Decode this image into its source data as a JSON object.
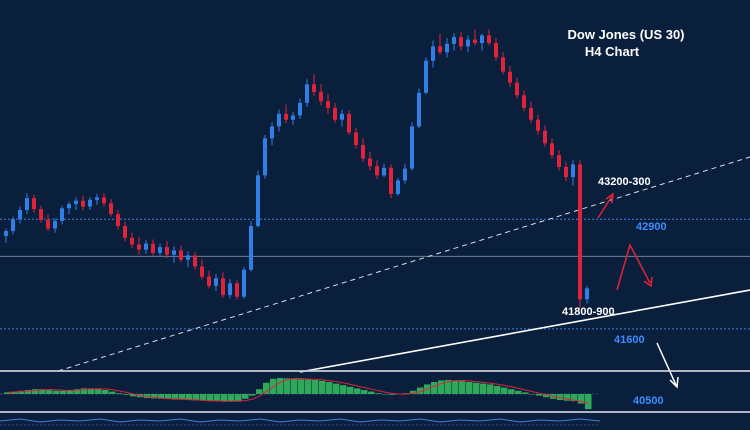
{
  "chart_data": {
    "type": "candlestick",
    "title": "Dow Jones (US 30)",
    "subtitle": "H4 Chart",
    "ylim": [
      40400,
      45500
    ],
    "colors": {
      "background": "#0a1f3c",
      "candle_up": "#2f7fe6",
      "candle_down": "#e0233a",
      "level_line": "#3d7fe0",
      "level_label": "#3d8cff",
      "price_label": "#ffffff",
      "trendline": "#ffffff",
      "arrow_red": "#e0233a",
      "arrow_white": "#ffffff",
      "histogram": "#2fa85a"
    },
    "candles": [
      [
        42700,
        42790,
        42620,
        42760
      ],
      [
        42760,
        42930,
        42720,
        42900
      ],
      [
        42900,
        43050,
        42850,
        43010
      ],
      [
        43010,
        43210,
        42960,
        43150
      ],
      [
        43150,
        43190,
        42980,
        43020
      ],
      [
        43020,
        43060,
        42860,
        42890
      ],
      [
        42890,
        42960,
        42760,
        42790
      ],
      [
        42790,
        42910,
        42740,
        42880
      ],
      [
        42880,
        43060,
        42840,
        43030
      ],
      [
        43030,
        43110,
        42960,
        43080
      ],
      [
        43080,
        43160,
        43010,
        43120
      ],
      [
        43120,
        43180,
        43000,
        43050
      ],
      [
        43050,
        43160,
        43010,
        43130
      ],
      [
        43130,
        43200,
        43070,
        43160
      ],
      [
        43160,
        43210,
        43050,
        43090
      ],
      [
        43090,
        43140,
        42930,
        42960
      ],
      [
        42960,
        43010,
        42780,
        42820
      ],
      [
        42820,
        42870,
        42640,
        42680
      ],
      [
        42680,
        42740,
        42560,
        42600
      ],
      [
        42600,
        42690,
        42480,
        42540
      ],
      [
        42540,
        42650,
        42490,
        42610
      ],
      [
        42610,
        42660,
        42470,
        42500
      ],
      [
        42500,
        42610,
        42460,
        42570
      ],
      [
        42570,
        42640,
        42440,
        42480
      ],
      [
        42480,
        42580,
        42380,
        42530
      ],
      [
        42530,
        42590,
        42390,
        42420
      ],
      [
        42420,
        42520,
        42330,
        42470
      ],
      [
        42470,
        42510,
        42300,
        42340
      ],
      [
        42340,
        42420,
        42190,
        42220
      ],
      [
        42220,
        42290,
        42080,
        42110
      ],
      [
        42110,
        42250,
        42050,
        42200
      ],
      [
        42200,
        42270,
        41970,
        42000
      ],
      [
        42000,
        42190,
        41960,
        42140
      ],
      [
        42140,
        42180,
        41950,
        41980
      ],
      [
        41980,
        42330,
        41960,
        42300
      ],
      [
        42300,
        42880,
        42280,
        42820
      ],
      [
        42820,
        43480,
        42800,
        43420
      ],
      [
        43420,
        43900,
        43380,
        43860
      ],
      [
        43860,
        44050,
        43780,
        44000
      ],
      [
        44000,
        44200,
        43940,
        44150
      ],
      [
        44150,
        44260,
        44040,
        44080
      ],
      [
        44080,
        44170,
        44020,
        44130
      ],
      [
        44130,
        44330,
        44090,
        44280
      ],
      [
        44280,
        44560,
        44230,
        44500
      ],
      [
        44500,
        44620,
        44360,
        44410
      ],
      [
        44410,
        44500,
        44250,
        44300
      ],
      [
        44300,
        44390,
        44150,
        44220
      ],
      [
        44220,
        44280,
        44040,
        44080
      ],
      [
        44080,
        44200,
        44000,
        44150
      ],
      [
        44150,
        44190,
        43900,
        43930
      ],
      [
        43930,
        43980,
        43740,
        43780
      ],
      [
        43780,
        43860,
        43580,
        43620
      ],
      [
        43620,
        43700,
        43480,
        43530
      ],
      [
        43530,
        43600,
        43380,
        43420
      ],
      [
        43420,
        43560,
        43400,
        43510
      ],
      [
        43510,
        43550,
        43150,
        43200
      ],
      [
        43200,
        43390,
        43180,
        43360
      ],
      [
        43360,
        43560,
        43320,
        43500
      ],
      [
        43500,
        44050,
        43480,
        44000
      ],
      [
        44000,
        44450,
        43980,
        44400
      ],
      [
        44400,
        44820,
        44380,
        44780
      ],
      [
        44780,
        45020,
        44700,
        44950
      ],
      [
        44950,
        45100,
        44850,
        44880
      ],
      [
        44880,
        45050,
        44820,
        44980
      ],
      [
        44980,
        45110,
        44900,
        45060
      ],
      [
        45060,
        45120,
        44900,
        44950
      ],
      [
        44950,
        45080,
        44880,
        45030
      ],
      [
        45030,
        45150,
        44960,
        44990
      ],
      [
        44990,
        45100,
        44900,
        45080
      ],
      [
        45080,
        45150,
        44960,
        44990
      ],
      [
        44990,
        45050,
        44780,
        44820
      ],
      [
        44820,
        44880,
        44620,
        44650
      ],
      [
        44650,
        44720,
        44470,
        44520
      ],
      [
        44520,
        44580,
        44330,
        44370
      ],
      [
        44370,
        44430,
        44180,
        44220
      ],
      [
        44220,
        44300,
        44040,
        44080
      ],
      [
        44080,
        44140,
        43900,
        43950
      ],
      [
        43950,
        44010,
        43760,
        43800
      ],
      [
        43800,
        43860,
        43620,
        43660
      ],
      [
        43660,
        43720,
        43480,
        43520
      ],
      [
        43520,
        43580,
        43350,
        43400
      ],
      [
        43400,
        43600,
        43300,
        43550
      ],
      [
        43550,
        43600,
        41850,
        41950
      ],
      [
        41950,
        42110,
        41900,
        42080
      ]
    ],
    "levels": [
      {
        "price": 42900,
        "label": "42900",
        "style": "dotted"
      },
      {
        "price": 41600,
        "label": "41600",
        "style": "dotted"
      },
      {
        "price": 42460,
        "label": "",
        "style": "solid"
      }
    ],
    "annotations": [
      {
        "text": "43200-300",
        "price": 43250
      },
      {
        "text": "41800-900",
        "price": 41850
      }
    ],
    "extra_labels": [
      {
        "text": "40500"
      }
    ],
    "oscillator": {
      "values": [
        0.1,
        0.15,
        0.2,
        0.25,
        0.3,
        0.3,
        0.25,
        0.2,
        0.2,
        0.25,
        0.3,
        0.35,
        0.35,
        0.3,
        0.25,
        0.15,
        0.05,
        -0.05,
        -0.15,
        -0.2,
        -0.25,
        -0.28,
        -0.3,
        -0.32,
        -0.35,
        -0.35,
        -0.38,
        -0.4,
        -0.42,
        -0.45,
        -0.45,
        -0.48,
        -0.45,
        -0.42,
        -0.3,
        -0.1,
        0.3,
        0.7,
        0.95,
        1.0,
        0.98,
        0.95,
        0.92,
        0.9,
        0.88,
        0.82,
        0.75,
        0.65,
        0.55,
        0.45,
        0.35,
        0.25,
        0.15,
        0.05,
        0.0,
        -0.05,
        -0.02,
        0.05,
        0.2,
        0.4,
        0.6,
        0.75,
        0.85,
        0.88,
        0.85,
        0.8,
        0.75,
        0.7,
        0.65,
        0.6,
        0.5,
        0.4,
        0.3,
        0.2,
        0.1,
        0.0,
        -0.1,
        -0.2,
        -0.3,
        -0.38,
        -0.42,
        -0.45,
        -0.6,
        -0.95
      ]
    }
  }
}
